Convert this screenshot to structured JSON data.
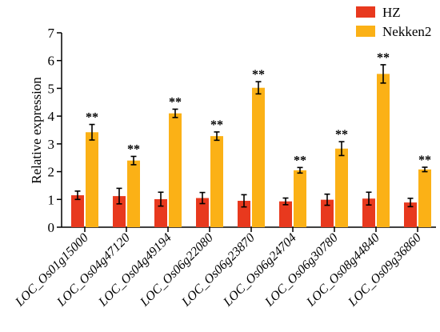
{
  "chart_data": {
    "type": "bar",
    "title": "",
    "xlabel": "",
    "ylabel": "Relative expression",
    "ylim": [
      0,
      7
    ],
    "yticks": [
      "0",
      "1",
      "2",
      "3",
      "4",
      "5",
      "6",
      "7"
    ],
    "grid": false,
    "legend_position": "top-right",
    "categories": [
      "LOC_Os01g15000",
      "LOC_Os04g47120",
      "LOC_Os04g49194",
      "LOC_Os06g22080",
      "LOC_Os06g23870",
      "LOC_Os06g24704",
      "LOC_Os06g30780",
      "LOC_Os08g44840",
      "LOC_Os09g36860"
    ],
    "series": [
      {
        "name": "HZ",
        "color": "#e8391e",
        "values": [
          1.15,
          1.12,
          1.01,
          1.05,
          0.95,
          0.93,
          0.99,
          1.03,
          0.89
        ],
        "errors": [
          0.15,
          0.28,
          0.25,
          0.2,
          0.22,
          0.12,
          0.2,
          0.23,
          0.15
        ],
        "significance": [
          "",
          "",
          "",
          "",
          "",
          "",
          "",
          "",
          ""
        ]
      },
      {
        "name": "Nekken2",
        "color": "#fbb116",
        "values": [
          3.42,
          2.4,
          4.1,
          3.28,
          5.02,
          2.05,
          2.83,
          5.52,
          2.08
        ],
        "errors": [
          0.28,
          0.15,
          0.15,
          0.15,
          0.22,
          0.1,
          0.25,
          0.33,
          0.08
        ],
        "significance": [
          "**",
          "**",
          "**",
          "**",
          "**",
          "**",
          "**",
          "**",
          "**"
        ]
      }
    ]
  }
}
